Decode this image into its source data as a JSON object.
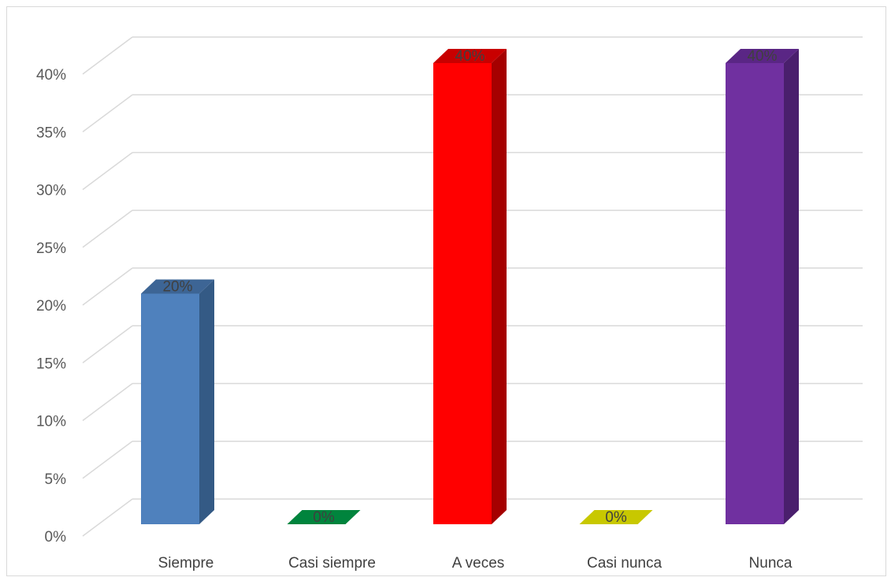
{
  "chart_data": {
    "type": "bar",
    "style": "3d-column",
    "categories": [
      "Siempre",
      "Casi siempre",
      "A veces",
      "Casi nunca",
      "Nunca"
    ],
    "values": [
      20,
      0,
      40,
      0,
      40
    ],
    "data_labels": [
      "20%",
      "0%",
      "40%",
      "0%",
      "40%"
    ],
    "value_unit": "%",
    "ylim": [
      0,
      40
    ],
    "ytick_labels": [
      "0%",
      "5%",
      "10%",
      "15%",
      "20%",
      "25%",
      "30%",
      "35%",
      "40%"
    ],
    "grid": true,
    "legend": "none",
    "colors": {
      "bars": [
        "#4f81bd",
        "#00843d",
        "#ff0000",
        "#c8c800",
        "#7030a0"
      ],
      "bar_sides": [
        "#345a85",
        "#005c2a",
        "#a50000",
        "#8f8f00",
        "#4a1f6d"
      ],
      "bar_tops": [
        "#3d6595",
        "#006b32",
        "#c80000",
        "#a8a800",
        "#5a2685"
      ],
      "grid": "#d9d9d9",
      "text": "#595959"
    }
  }
}
